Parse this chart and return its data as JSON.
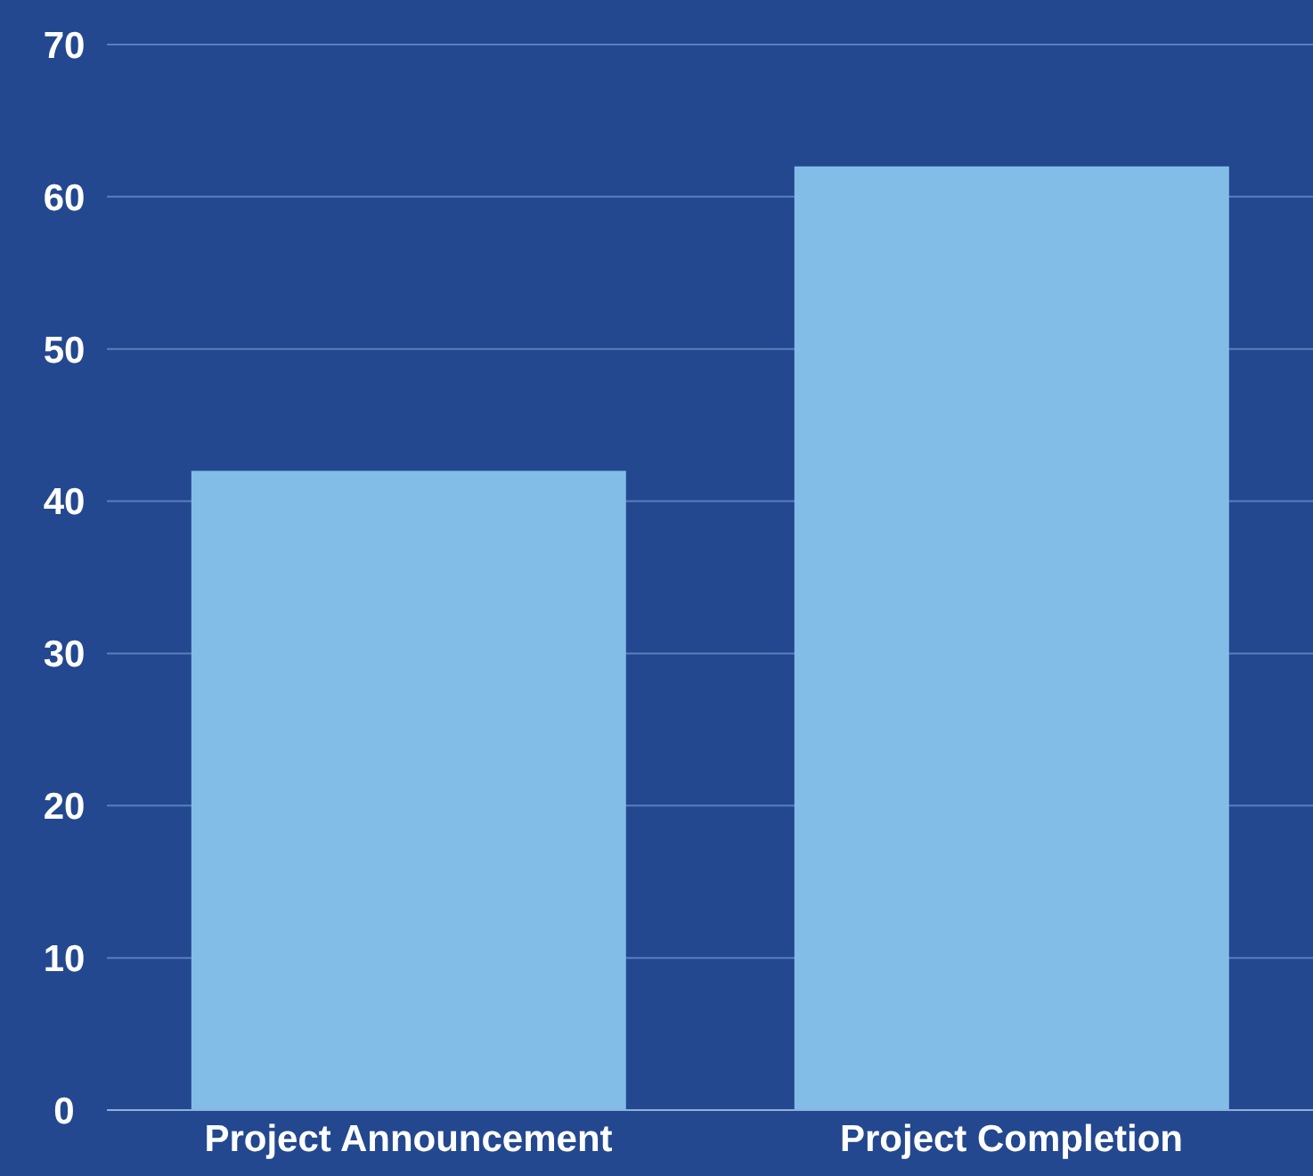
{
  "chart_data": {
    "type": "bar",
    "categories": [
      "Project Announcement",
      "Project Completion"
    ],
    "values": [
      42,
      62
    ],
    "color": "#82bde8",
    "ylim": [
      0,
      70
    ],
    "yticks": [
      0,
      10,
      20,
      30,
      40,
      50,
      60,
      70
    ],
    "grid": "y"
  }
}
